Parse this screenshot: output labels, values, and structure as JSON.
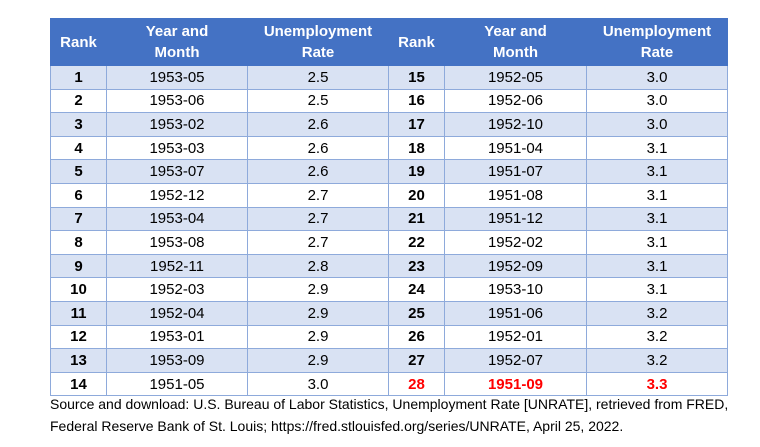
{
  "table": {
    "headers": {
      "rank": "Rank",
      "year_month_line1": "Year and",
      "year_month_line2": "Month",
      "rate_line1": "Unemployment",
      "rate_line2": "Rate"
    },
    "left": [
      {
        "rank": "1",
        "ym": "1953-05",
        "rate": "2.5"
      },
      {
        "rank": "2",
        "ym": "1953-06",
        "rate": "2.5"
      },
      {
        "rank": "3",
        "ym": "1953-02",
        "rate": "2.6"
      },
      {
        "rank": "4",
        "ym": "1953-03",
        "rate": "2.6"
      },
      {
        "rank": "5",
        "ym": "1953-07",
        "rate": "2.6"
      },
      {
        "rank": "6",
        "ym": "1952-12",
        "rate": "2.7"
      },
      {
        "rank": "7",
        "ym": "1953-04",
        "rate": "2.7"
      },
      {
        "rank": "8",
        "ym": "1953-08",
        "rate": "2.7"
      },
      {
        "rank": "9",
        "ym": "1952-11",
        "rate": "2.8"
      },
      {
        "rank": "10",
        "ym": "1952-03",
        "rate": "2.9"
      },
      {
        "rank": "11",
        "ym": "1952-04",
        "rate": "2.9"
      },
      {
        "rank": "12",
        "ym": "1953-01",
        "rate": "2.9"
      },
      {
        "rank": "13",
        "ym": "1953-09",
        "rate": "2.9"
      },
      {
        "rank": "14",
        "ym": "1951-05",
        "rate": "3.0"
      }
    ],
    "right": [
      {
        "rank": "15",
        "ym": "1952-05",
        "rate": "3.0"
      },
      {
        "rank": "16",
        "ym": "1952-06",
        "rate": "3.0"
      },
      {
        "rank": "17",
        "ym": "1952-10",
        "rate": "3.0"
      },
      {
        "rank": "18",
        "ym": "1951-04",
        "rate": "3.1"
      },
      {
        "rank": "19",
        "ym": "1951-07",
        "rate": "3.1"
      },
      {
        "rank": "20",
        "ym": "1951-08",
        "rate": "3.1"
      },
      {
        "rank": "21",
        "ym": "1951-12",
        "rate": "3.1"
      },
      {
        "rank": "22",
        "ym": "1952-02",
        "rate": "3.1"
      },
      {
        "rank": "23",
        "ym": "1952-09",
        "rate": "3.1"
      },
      {
        "rank": "24",
        "ym": "1953-10",
        "rate": "3.1"
      },
      {
        "rank": "25",
        "ym": "1951-06",
        "rate": "3.2"
      },
      {
        "rank": "26",
        "ym": "1952-01",
        "rate": "3.2"
      },
      {
        "rank": "27",
        "ym": "1952-07",
        "rate": "3.2"
      },
      {
        "rank": "28",
        "ym": "1951-09",
        "rate": "3.3",
        "highlight": true
      }
    ]
  },
  "colors": {
    "header_bg": "#4472c4",
    "band_bg": "#d9e2f3",
    "highlight_text": "#ff0000"
  },
  "source": {
    "line1": "Source and download: U.S. Bureau of Labor Statistics, Unemployment Rate [UNRATE], retrieved from FRED,",
    "line2": "Federal Reserve Bank of St. Louis; https://fred.stlouisfed.org/series/UNRATE, April 25, 2022."
  }
}
